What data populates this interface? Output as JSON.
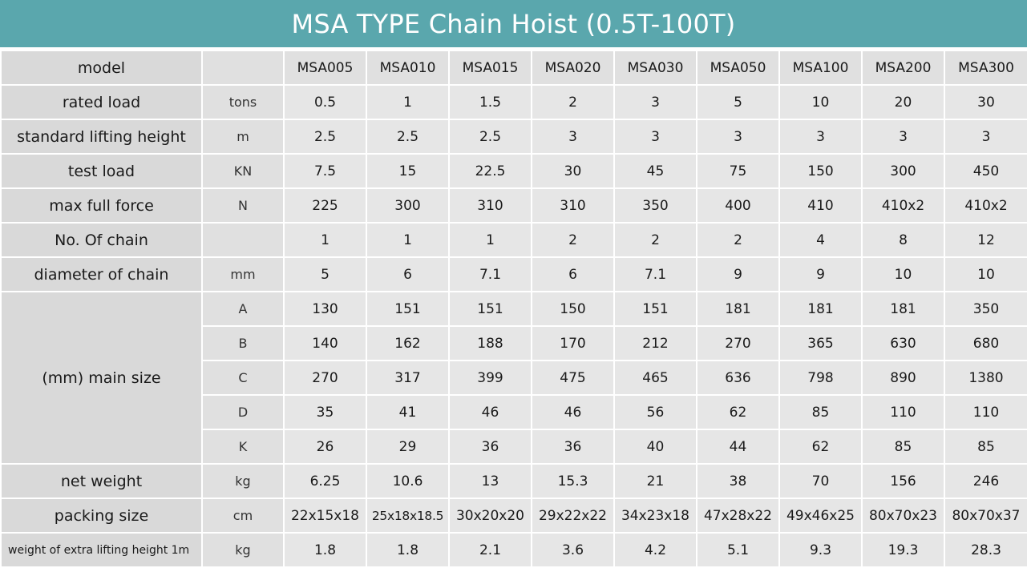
{
  "title": "MSA TYPE Chain Hoist (0.5T-100T)",
  "header": {
    "label": "model",
    "unit": "",
    "models": [
      "MSA005",
      "MSA010",
      "MSA015",
      "MSA020",
      "MSA030",
      "MSA050",
      "MSA100",
      "MSA200",
      "MSA300"
    ]
  },
  "rows": [
    {
      "label": "rated load",
      "unit": "tons",
      "values": [
        "0.5",
        "1",
        "1.5",
        "2",
        "3",
        "5",
        "10",
        "20",
        "30"
      ]
    },
    {
      "label": "standard lifting height",
      "unit": "m",
      "values": [
        "2.5",
        "2.5",
        "2.5",
        "3",
        "3",
        "3",
        "3",
        "3",
        "3"
      ]
    },
    {
      "label": "test load",
      "unit": "KN",
      "values": [
        "7.5",
        "15",
        "22.5",
        "30",
        "45",
        "75",
        "150",
        "300",
        "450"
      ]
    },
    {
      "label": "max full force",
      "unit": "N",
      "values": [
        "225",
        "300",
        "310",
        "310",
        "350",
        "400",
        "410",
        "410x2",
        "410x2"
      ]
    },
    {
      "label": "No. Of chain",
      "unit": "",
      "values": [
        "1",
        "1",
        "1",
        "2",
        "2",
        "2",
        "4",
        "8",
        "12"
      ]
    },
    {
      "label": "diameter of chain",
      "unit": "mm",
      "values": [
        "5",
        "6",
        "7.1",
        "6",
        "7.1",
        "9",
        "9",
        "10",
        "10"
      ]
    }
  ],
  "main_size": {
    "label": "(mm) main size",
    "rows": [
      {
        "unit": "A",
        "values": [
          "130",
          "151",
          "151",
          "150",
          "151",
          "181",
          "181",
          "181",
          "350"
        ]
      },
      {
        "unit": "B",
        "values": [
          "140",
          "162",
          "188",
          "170",
          "212",
          "270",
          "365",
          "630",
          "680"
        ]
      },
      {
        "unit": "C",
        "values": [
          "270",
          "317",
          "399",
          "475",
          "465",
          "636",
          "798",
          "890",
          "1380"
        ]
      },
      {
        "unit": "D",
        "values": [
          "35",
          "41",
          "46",
          "46",
          "56",
          "62",
          "85",
          "110",
          "110"
        ]
      },
      {
        "unit": "K",
        "values": [
          "26",
          "29",
          "36",
          "36",
          "40",
          "44",
          "62",
          "85",
          "85"
        ]
      }
    ]
  },
  "tail_rows": [
    {
      "label": "net weight",
      "unit": "kg",
      "values": [
        "6.25",
        "10.6",
        "13",
        "15.3",
        "21",
        "38",
        "70",
        "156",
        "246"
      ]
    },
    {
      "label": "packing size",
      "unit": "cm",
      "values": [
        "22x15x18",
        "25x18x18.5",
        "30x20x20",
        "29x22x22",
        "34x23x18",
        "47x28x22",
        "49x46x25",
        "80x70x23",
        "80x70x37"
      ]
    },
    {
      "label": "weight of extra lifting height 1m",
      "unit": "kg",
      "values": [
        "1.8",
        "1.8",
        "2.1",
        "3.6",
        "4.2",
        "5.1",
        "9.3",
        "19.3",
        "28.3"
      ]
    }
  ]
}
